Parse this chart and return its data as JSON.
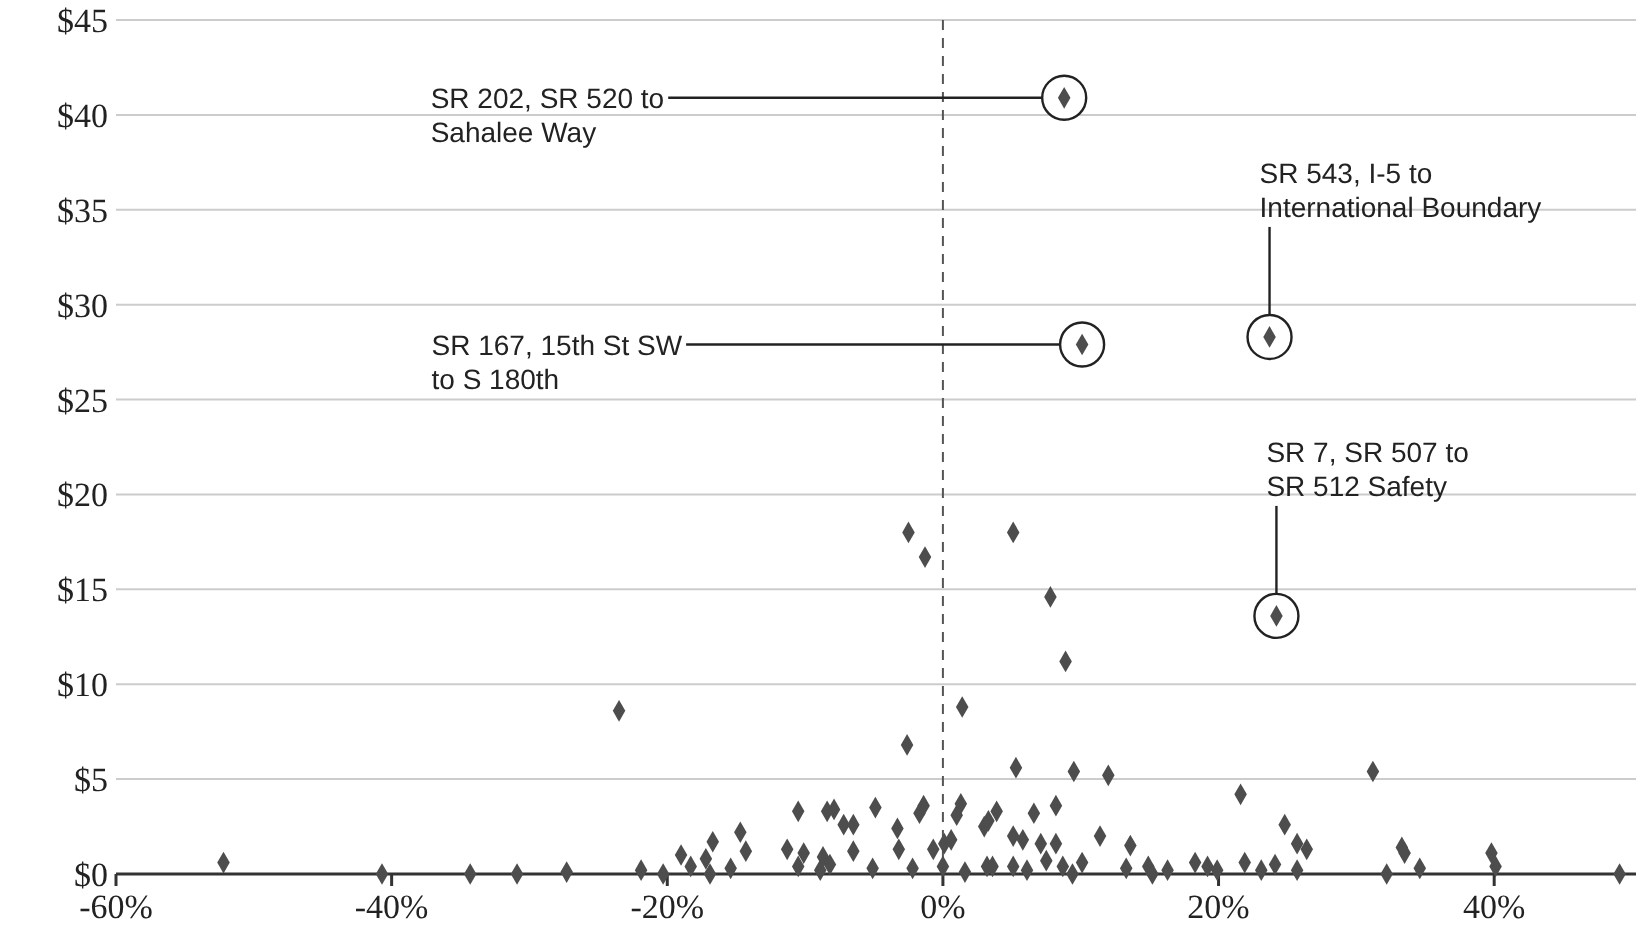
{
  "chart_data": {
    "type": "scatter",
    "marker": "diamond",
    "grid": "y",
    "xlim": [
      -60,
      50
    ],
    "ylim": [
      0,
      45
    ],
    "xticks": [
      {
        "value": -60,
        "label": "-60%"
      },
      {
        "value": -40,
        "label": "-40%"
      },
      {
        "value": -20,
        "label": "-20%"
      },
      {
        "value": 0,
        "label": "0%"
      },
      {
        "value": 20,
        "label": "20%"
      },
      {
        "value": 40,
        "label": "40%"
      }
    ],
    "yticks": [
      {
        "value": 0,
        "label": "$0"
      },
      {
        "value": 5,
        "label": "$5"
      },
      {
        "value": 10,
        "label": "$10"
      },
      {
        "value": 15,
        "label": "$15"
      },
      {
        "value": 20,
        "label": "$20"
      },
      {
        "value": 25,
        "label": "$25"
      },
      {
        "value": 30,
        "label": "$30"
      },
      {
        "value": 35,
        "label": "$35"
      },
      {
        "value": 40,
        "label": "$40"
      },
      {
        "value": 45,
        "label": "$45"
      }
    ],
    "ref_lines": [
      {
        "axis": "x",
        "value": 0,
        "line_style": "dashed",
        "color": "#555555"
      }
    ],
    "series": [
      {
        "color": "#4d4d4d",
        "x": [
          8.8,
          10.1,
          23.7,
          24.2,
          -2.5,
          -1.3,
          5.1,
          7.8,
          8.9,
          -23.5,
          1.4,
          -2.6,
          5.3,
          9.5,
          12,
          31.2,
          21.6,
          -52.2,
          -40.7,
          -34.3,
          -30.9,
          -27.3,
          -21.9,
          -20.3,
          -19,
          -18.3,
          -17.2,
          -16.7,
          -16.9,
          -15.4,
          -14.7,
          -14.3,
          -10.5,
          -11.3,
          -10.1,
          -10.5,
          -8.4,
          -7.9,
          -7.2,
          -6.5,
          -6.5,
          -8.7,
          -8.2,
          -8.9,
          -4.9,
          -5.1,
          -3.3,
          -3.2,
          -2.2,
          -1.7,
          -1.4,
          -0.7,
          0.1,
          0.6,
          0,
          1,
          1.3,
          1.6,
          3,
          3.3,
          3.9,
          3.2,
          3.6,
          5.1,
          5.8,
          5.1,
          6.1,
          6.6,
          7.1,
          7.5,
          8.2,
          8.2,
          8.7,
          9.4,
          10.1,
          11.4,
          13.3,
          13.6,
          14.9,
          15.2,
          16.3,
          18.3,
          19.2,
          19.9,
          21.9,
          23.1,
          24.1,
          24.8,
          25.7,
          25.7,
          26.4,
          32.2,
          33.3,
          33.5,
          34.6,
          39.8,
          40.1,
          49.1
        ],
        "values": [
          40.9,
          27.9,
          28.3,
          13.6,
          18,
          16.7,
          18,
          14.6,
          11.2,
          8.6,
          8.8,
          6.8,
          5.6,
          5.4,
          5.2,
          5.4,
          4.2,
          0.6,
          0,
          0,
          0,
          0.1,
          0.2,
          0,
          1,
          0.4,
          0.8,
          1.7,
          0,
          0.3,
          2.2,
          1.2,
          3.3,
          1.3,
          1.1,
          0.4,
          3.3,
          3.4,
          2.6,
          2.6,
          1.2,
          0.9,
          0.5,
          0.2,
          3.5,
          0.3,
          2.4,
          1.3,
          0.3,
          3.2,
          3.6,
          1.3,
          1.6,
          1.8,
          0.4,
          3.1,
          3.7,
          0.1,
          2.5,
          2.8,
          3.3,
          0.4,
          0.4,
          2,
          1.8,
          0.4,
          0.2,
          3.2,
          1.6,
          0.7,
          3.6,
          1.6,
          0.4,
          0,
          0.6,
          2,
          0.3,
          1.5,
          0.4,
          0,
          0.2,
          0.6,
          0.4,
          0.2,
          0.6,
          0.2,
          0.5,
          2.6,
          0.2,
          1.6,
          1.3,
          0,
          1.4,
          1.1,
          0.3,
          1.1,
          0.4,
          0
        ]
      }
    ],
    "annotations": [
      {
        "text": "SR 202, SR 520 to Sahalee Way",
        "x": 8.8,
        "y": 40.9
      },
      {
        "text": "SR 167, 15th St SW to S 180th",
        "x": 10.1,
        "y": 27.9
      },
      {
        "text": "SR 543, I-5 to International Boundary",
        "x": 23.7,
        "y": 28.3
      },
      {
        "text": "SR 7, SR 507 to SR 512 Safety",
        "x": 24.2,
        "y": 13.6
      }
    ]
  }
}
